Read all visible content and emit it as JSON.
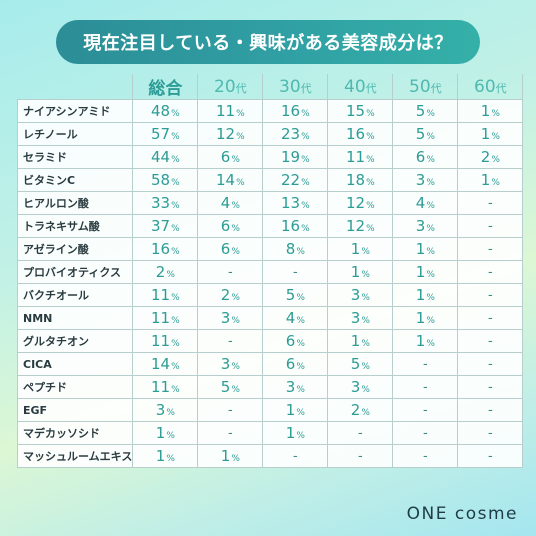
{
  "title": "現在注目している・興味がある美容成分は？",
  "brand": "ONE cosme",
  "dash": "-",
  "chart_data": {
    "type": "table",
    "title": "現在注目している・興味がある美容成分は？",
    "columns": [
      {
        "num": "総合",
        "suffix": ""
      },
      {
        "num": "20",
        "suffix": "代"
      },
      {
        "num": "30",
        "suffix": "代"
      },
      {
        "num": "40",
        "suffix": "代"
      },
      {
        "num": "50",
        "suffix": "代"
      },
      {
        "num": "60",
        "suffix": "代"
      }
    ],
    "unit": "%",
    "rows": [
      {
        "label": "ナイアシンアミド",
        "values": [
          48,
          11,
          16,
          15,
          5,
          1
        ]
      },
      {
        "label": "レチノール",
        "values": [
          57,
          12,
          23,
          16,
          5,
          1
        ]
      },
      {
        "label": "セラミド",
        "values": [
          44,
          6,
          19,
          11,
          6,
          2
        ]
      },
      {
        "label": "ビタミンC",
        "values": [
          58,
          14,
          22,
          18,
          3,
          1
        ]
      },
      {
        "label": "ヒアルロン酸",
        "values": [
          33,
          4,
          13,
          12,
          4,
          null
        ]
      },
      {
        "label": "トラネキサム酸",
        "values": [
          37,
          6,
          16,
          12,
          3,
          null
        ]
      },
      {
        "label": "アゼライン酸",
        "values": [
          16,
          6,
          8,
          1,
          1,
          null
        ]
      },
      {
        "label": "プロバイオティクス",
        "values": [
          2,
          null,
          null,
          1,
          1,
          null
        ]
      },
      {
        "label": "バクチオール",
        "values": [
          11,
          2,
          5,
          3,
          1,
          null
        ]
      },
      {
        "label": "NMN",
        "values": [
          11,
          3,
          4,
          3,
          1,
          null
        ]
      },
      {
        "label": "グルタチオン",
        "values": [
          11,
          null,
          6,
          1,
          1,
          null
        ]
      },
      {
        "label": "CICA",
        "values": [
          14,
          3,
          6,
          5,
          null,
          null
        ]
      },
      {
        "label": "ペプチド",
        "values": [
          11,
          5,
          3,
          3,
          null,
          null
        ]
      },
      {
        "label": "EGF",
        "values": [
          3,
          null,
          1,
          2,
          null,
          null
        ]
      },
      {
        "label": "マデカッソシド",
        "values": [
          1,
          null,
          1,
          null,
          null,
          null
        ]
      },
      {
        "label": "マッシュルームエキス",
        "values": [
          1,
          1,
          null,
          null,
          null,
          null
        ]
      }
    ]
  }
}
